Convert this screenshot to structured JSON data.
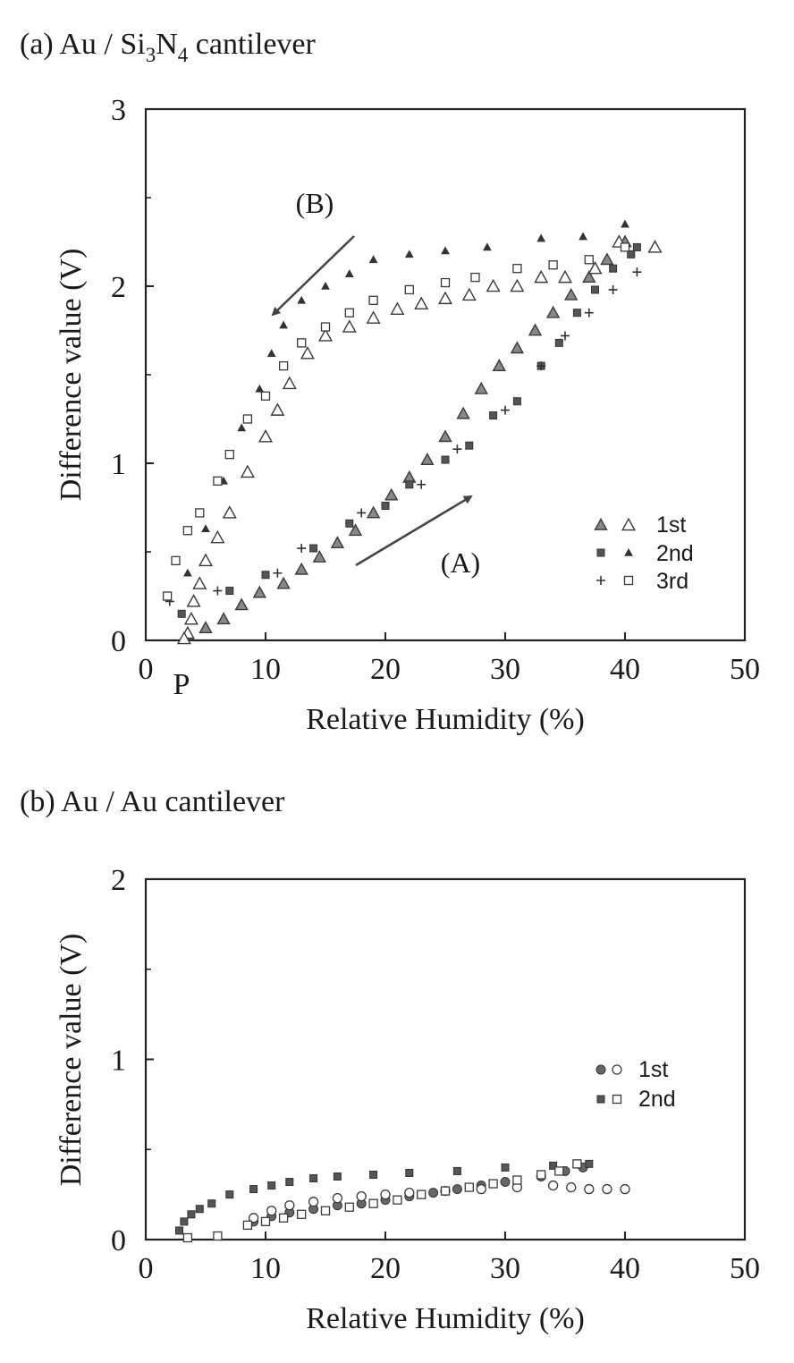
{
  "chart_data": [
    {
      "type": "scatter",
      "panel_label": "(a)",
      "title_prefix": "Au / Si",
      "title_sub1": "3",
      "title_mid": "N",
      "title_sub2": "4",
      "title_suffix": " cantilever",
      "xlabel": "Relative Humidity (%)",
      "ylabel": "Difference value (V)",
      "xlim": [
        0,
        50
      ],
      "ylim": [
        0,
        3
      ],
      "xticks": [
        "0",
        "10",
        "20",
        "30",
        "40",
        "50"
      ],
      "yticks": [
        "0",
        "1",
        "2",
        "3"
      ],
      "point_label": "P",
      "annotations": {
        "B": "(B)",
        "A": "(A)"
      },
      "legend_labels": [
        "1st",
        "2nd",
        "3rd"
      ],
      "series": [
        {
          "name": "1st (A) increasing",
          "marker": "triangle-filled",
          "points": [
            [
              3.5,
              0.03
            ],
            [
              5,
              0.07
            ],
            [
              6.5,
              0.12
            ],
            [
              8,
              0.2
            ],
            [
              9.5,
              0.27
            ],
            [
              11.5,
              0.32
            ],
            [
              13,
              0.4
            ],
            [
              14.5,
              0.47
            ],
            [
              16,
              0.55
            ],
            [
              17.5,
              0.62
            ],
            [
              19,
              0.72
            ],
            [
              20.5,
              0.82
            ],
            [
              22,
              0.92
            ],
            [
              23.5,
              1.02
            ],
            [
              25,
              1.15
            ],
            [
              26.5,
              1.28
            ],
            [
              28,
              1.42
            ],
            [
              29.5,
              1.55
            ],
            [
              31,
              1.65
            ],
            [
              32.5,
              1.75
            ],
            [
              34,
              1.85
            ],
            [
              35.5,
              1.95
            ],
            [
              37,
              2.05
            ],
            [
              38.5,
              2.15
            ],
            [
              40,
              2.25
            ]
          ]
        },
        {
          "name": "1st (B) decreasing",
          "marker": "triangle-open",
          "points": [
            [
              42.5,
              2.22
            ],
            [
              39.5,
              2.25
            ],
            [
              37.5,
              2.1
            ],
            [
              35,
              2.05
            ],
            [
              33,
              2.05
            ],
            [
              31,
              2.0
            ],
            [
              29,
              2.0
            ],
            [
              27,
              1.95
            ],
            [
              25,
              1.93
            ],
            [
              23,
              1.9
            ],
            [
              21,
              1.87
            ],
            [
              19,
              1.82
            ],
            [
              17,
              1.77
            ],
            [
              15,
              1.72
            ],
            [
              13.5,
              1.62
            ],
            [
              12,
              1.45
            ],
            [
              11,
              1.3
            ],
            [
              10,
              1.15
            ],
            [
              8.5,
              0.95
            ],
            [
              7,
              0.72
            ],
            [
              6,
              0.58
            ],
            [
              5,
              0.45
            ],
            [
              4.5,
              0.32
            ],
            [
              4,
              0.22
            ],
            [
              3.8,
              0.12
            ],
            [
              3.5,
              0.04
            ],
            [
              3.2,
              0.01
            ]
          ]
        },
        {
          "name": "2nd (A) increasing",
          "marker": "square-filled",
          "points": [
            [
              3,
              0.15
            ],
            [
              7,
              0.28
            ],
            [
              10,
              0.37
            ],
            [
              14,
              0.52
            ],
            [
              17,
              0.66
            ],
            [
              20,
              0.76
            ],
            [
              22,
              0.88
            ],
            [
              25,
              1.02
            ],
            [
              27,
              1.1
            ],
            [
              29,
              1.27
            ],
            [
              31,
              1.35
            ],
            [
              33,
              1.55
            ],
            [
              34.5,
              1.68
            ],
            [
              36,
              1.85
            ],
            [
              37.5,
              1.98
            ],
            [
              39,
              2.1
            ],
            [
              40.5,
              2.18
            ],
            [
              41,
              2.22
            ]
          ]
        },
        {
          "name": "2nd (B) decreasing",
          "marker": "triangle-small",
          "points": [
            [
              40,
              2.35
            ],
            [
              36.5,
              2.28
            ],
            [
              33,
              2.27
            ],
            [
              28.5,
              2.22
            ],
            [
              25,
              2.2
            ],
            [
              22,
              2.18
            ],
            [
              19,
              2.15
            ],
            [
              17,
              2.07
            ],
            [
              15,
              2.0
            ],
            [
              13,
              1.92
            ],
            [
              11.5,
              1.78
            ],
            [
              10.5,
              1.62
            ],
            [
              9.5,
              1.42
            ],
            [
              8,
              1.2
            ],
            [
              6.5,
              0.9
            ],
            [
              5,
              0.63
            ],
            [
              3.5,
              0.38
            ]
          ]
        },
        {
          "name": "3rd (A) increasing",
          "marker": "plus",
          "points": [
            [
              2,
              0.22
            ],
            [
              6,
              0.28
            ],
            [
              11,
              0.38
            ],
            [
              13,
              0.52
            ],
            [
              18,
              0.72
            ],
            [
              23,
              0.88
            ],
            [
              26,
              1.08
            ],
            [
              30,
              1.3
            ],
            [
              33,
              1.55
            ],
            [
              35,
              1.72
            ],
            [
              37,
              1.85
            ],
            [
              39,
              1.98
            ],
            [
              41,
              2.08
            ]
          ]
        },
        {
          "name": "3rd (B) decreasing",
          "marker": "square-open",
          "points": [
            [
              40,
              2.22
            ],
            [
              37,
              2.15
            ],
            [
              34,
              2.12
            ],
            [
              31,
              2.1
            ],
            [
              27.5,
              2.05
            ],
            [
              25,
              2.02
            ],
            [
              22,
              1.98
            ],
            [
              19,
              1.92
            ],
            [
              17,
              1.85
            ],
            [
              15,
              1.77
            ],
            [
              13,
              1.68
            ],
            [
              11.5,
              1.55
            ],
            [
              10,
              1.38
            ],
            [
              8.5,
              1.25
            ],
            [
              7,
              1.05
            ],
            [
              6,
              0.9
            ],
            [
              4.5,
              0.72
            ],
            [
              3.5,
              0.62
            ],
            [
              2.5,
              0.45
            ],
            [
              1.8,
              0.25
            ]
          ]
        }
      ]
    },
    {
      "type": "scatter",
      "panel_label": "(b)",
      "title": "(b) Au / Au cantilever",
      "xlabel": "Relative Humidity (%)",
      "ylabel": "Difference value (V)",
      "xlim": [
        0,
        50
      ],
      "ylim": [
        0,
        2
      ],
      "xticks": [
        "0",
        "10",
        "20",
        "30",
        "40",
        "50"
      ],
      "yticks": [
        "0",
        "1",
        "2"
      ],
      "legend_labels": [
        "1st",
        "2nd"
      ],
      "series": [
        {
          "name": "1st filled",
          "marker": "circle-filled",
          "points": [
            [
              9,
              0.1
            ],
            [
              10.5,
              0.13
            ],
            [
              12,
              0.15
            ],
            [
              14,
              0.17
            ],
            [
              16,
              0.19
            ],
            [
              18,
              0.2
            ],
            [
              20,
              0.22
            ],
            [
              22,
              0.24
            ],
            [
              24,
              0.26
            ],
            [
              26,
              0.28
            ],
            [
              28,
              0.3
            ],
            [
              30,
              0.32
            ],
            [
              33,
              0.35
            ],
            [
              35,
              0.38
            ],
            [
              36.5,
              0.4
            ]
          ]
        },
        {
          "name": "1st open",
          "marker": "circle-open",
          "points": [
            [
              9,
              0.12
            ],
            [
              10.5,
              0.16
            ],
            [
              12,
              0.19
            ],
            [
              14,
              0.21
            ],
            [
              16,
              0.23
            ],
            [
              18,
              0.24
            ],
            [
              20,
              0.25
            ],
            [
              22,
              0.26
            ],
            [
              25,
              0.27
            ],
            [
              28,
              0.28
            ],
            [
              31,
              0.29
            ],
            [
              34,
              0.3
            ],
            [
              35.5,
              0.29
            ],
            [
              37,
              0.28
            ],
            [
              38.5,
              0.28
            ],
            [
              40,
              0.28
            ]
          ]
        },
        {
          "name": "2nd filled",
          "marker": "square-filled",
          "points": [
            [
              2.8,
              0.05
            ],
            [
              3.2,
              0.1
            ],
            [
              3.8,
              0.14
            ],
            [
              4.5,
              0.17
            ],
            [
              5.5,
              0.2
            ],
            [
              7,
              0.25
            ],
            [
              9,
              0.28
            ],
            [
              10.5,
              0.3
            ],
            [
              12,
              0.32
            ],
            [
              14,
              0.34
            ],
            [
              16,
              0.35
            ],
            [
              19,
              0.36
            ],
            [
              22,
              0.37
            ],
            [
              26,
              0.38
            ],
            [
              30,
              0.4
            ],
            [
              34,
              0.41
            ],
            [
              37,
              0.42
            ]
          ]
        },
        {
          "name": "2nd open",
          "marker": "square-open",
          "points": [
            [
              3.5,
              0.01
            ],
            [
              6,
              0.02
            ],
            [
              8.5,
              0.08
            ],
            [
              10,
              0.1
            ],
            [
              11.5,
              0.12
            ],
            [
              13,
              0.14
            ],
            [
              15,
              0.16
            ],
            [
              17,
              0.18
            ],
            [
              19,
              0.2
            ],
            [
              21,
              0.22
            ],
            [
              23,
              0.25
            ],
            [
              25,
              0.27
            ],
            [
              27,
              0.29
            ],
            [
              29,
              0.31
            ],
            [
              31,
              0.33
            ],
            [
              33,
              0.36
            ],
            [
              34.5,
              0.38
            ],
            [
              36,
              0.42
            ]
          ]
        }
      ]
    }
  ]
}
